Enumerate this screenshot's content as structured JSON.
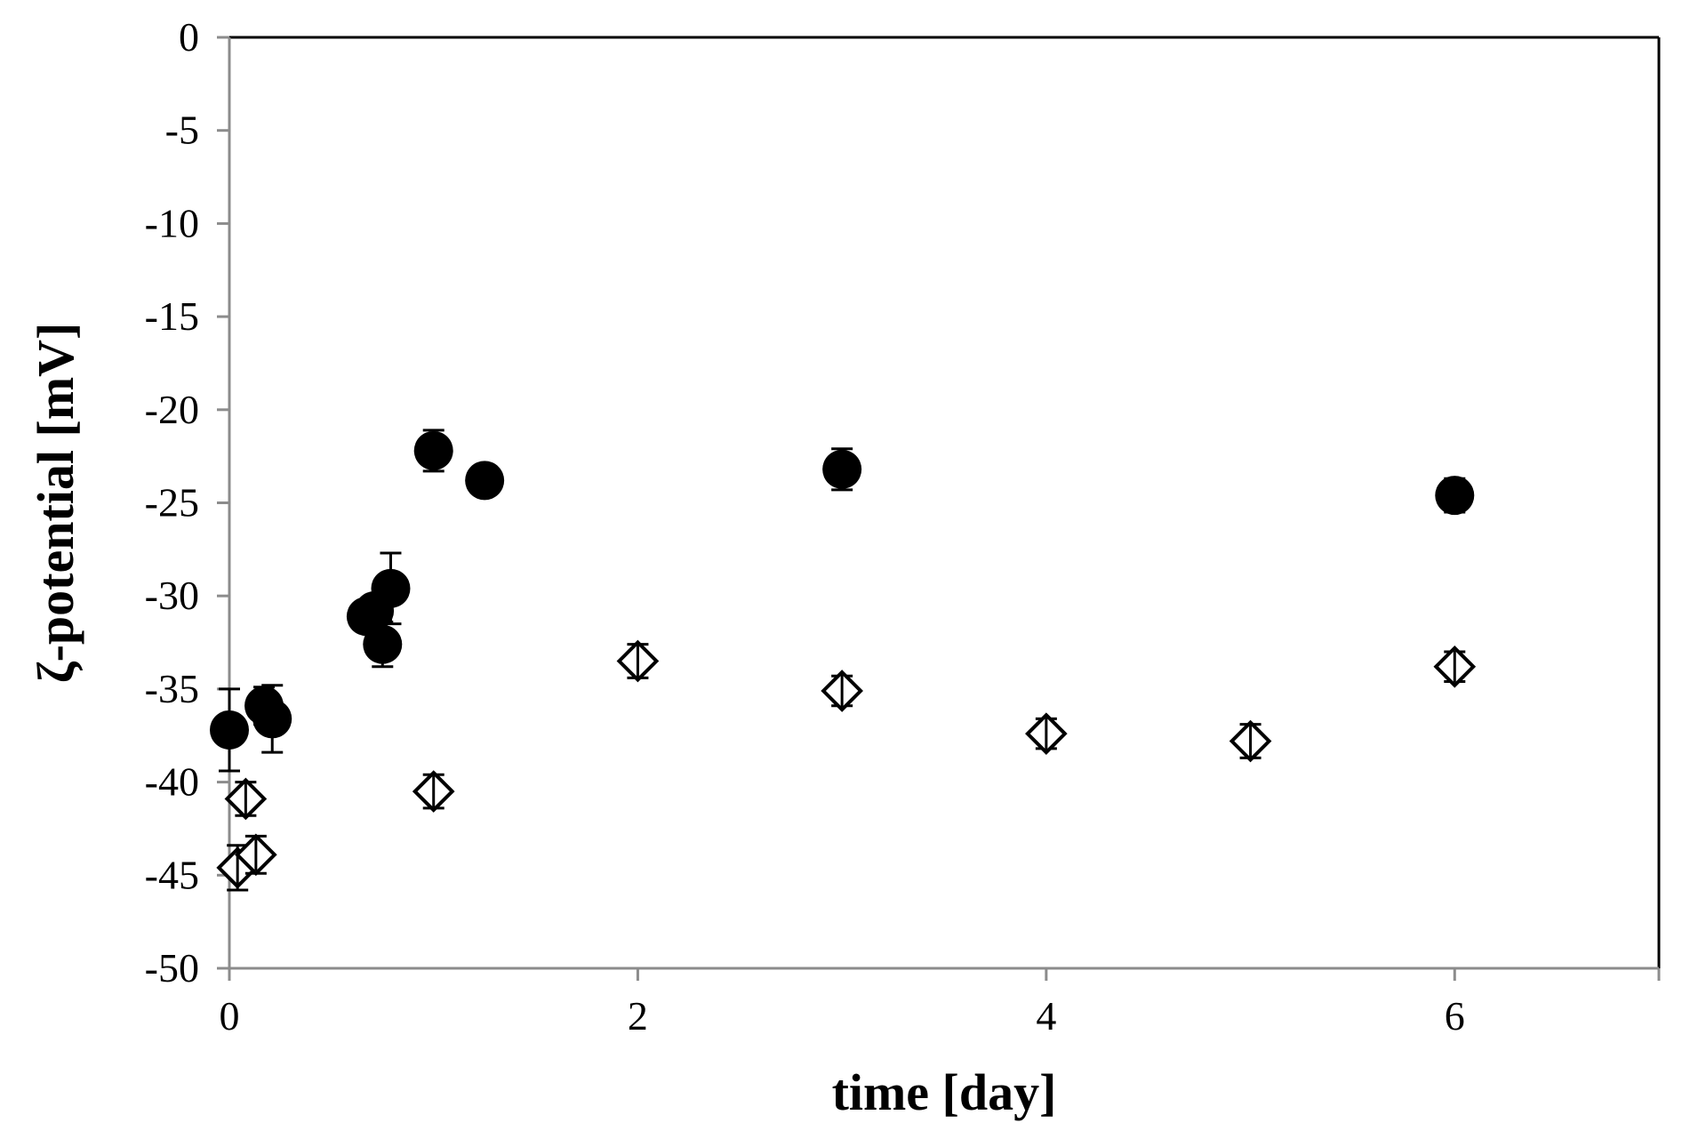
{
  "chart_data": {
    "type": "scatter",
    "title": "",
    "xlabel": "time [day]",
    "ylabel": "ζ-potential [mV]",
    "xlim": [
      0,
      7
    ],
    "ylim": [
      -50,
      0
    ],
    "x_ticks": [
      0,
      2,
      4,
      6
    ],
    "x_tick_labels": [
      "0",
      "2",
      "4",
      "6"
    ],
    "y_ticks": [
      0,
      -5,
      -10,
      -15,
      -20,
      -25,
      -30,
      -35,
      -40,
      -45,
      -50
    ],
    "y_tick_labels": [
      "0",
      "-5",
      "-10",
      "-15",
      "-20",
      "-25",
      "-30",
      "-35",
      "-40",
      "-45",
      "-50"
    ],
    "grid": false,
    "legend": "none",
    "series": [
      {
        "marker": "filled-circle",
        "color": "#000000",
        "points": [
          {
            "x": 0.0,
            "y": -37.2,
            "err": 2.2
          },
          {
            "x": 0.17,
            "y": -35.9,
            "err": 1.0
          },
          {
            "x": 0.21,
            "y": -36.6,
            "err": 1.8
          },
          {
            "x": 0.67,
            "y": -31.1,
            "err": 0.6
          },
          {
            "x": 0.71,
            "y": -30.8,
            "err": 0.6
          },
          {
            "x": 0.75,
            "y": -32.6,
            "err": 1.2
          },
          {
            "x": 0.79,
            "y": -29.6,
            "err": 1.9
          },
          {
            "x": 1.0,
            "y": -22.2,
            "err": 1.1
          },
          {
            "x": 1.25,
            "y": -23.8,
            "err": 0.6
          },
          {
            "x": 3.0,
            "y": -23.2,
            "err": 1.1
          },
          {
            "x": 6.0,
            "y": -24.6,
            "err": 0.9
          }
        ]
      },
      {
        "marker": "open-diamond",
        "color": "#000000",
        "points": [
          {
            "x": 0.04,
            "y": -44.6,
            "err": 1.2
          },
          {
            "x": 0.08,
            "y": -40.9,
            "err": 0.9
          },
          {
            "x": 0.13,
            "y": -43.9,
            "err": 1.0
          },
          {
            "x": 1.0,
            "y": -40.5,
            "err": 0.9
          },
          {
            "x": 2.0,
            "y": -33.5,
            "err": 0.9
          },
          {
            "x": 3.0,
            "y": -35.1,
            "err": 0.8
          },
          {
            "x": 4.0,
            "y": -37.4,
            "err": 0.8
          },
          {
            "x": 5.0,
            "y": -37.8,
            "err": 0.9
          },
          {
            "x": 6.0,
            "y": -33.8,
            "err": 0.8
          }
        ]
      }
    ]
  }
}
